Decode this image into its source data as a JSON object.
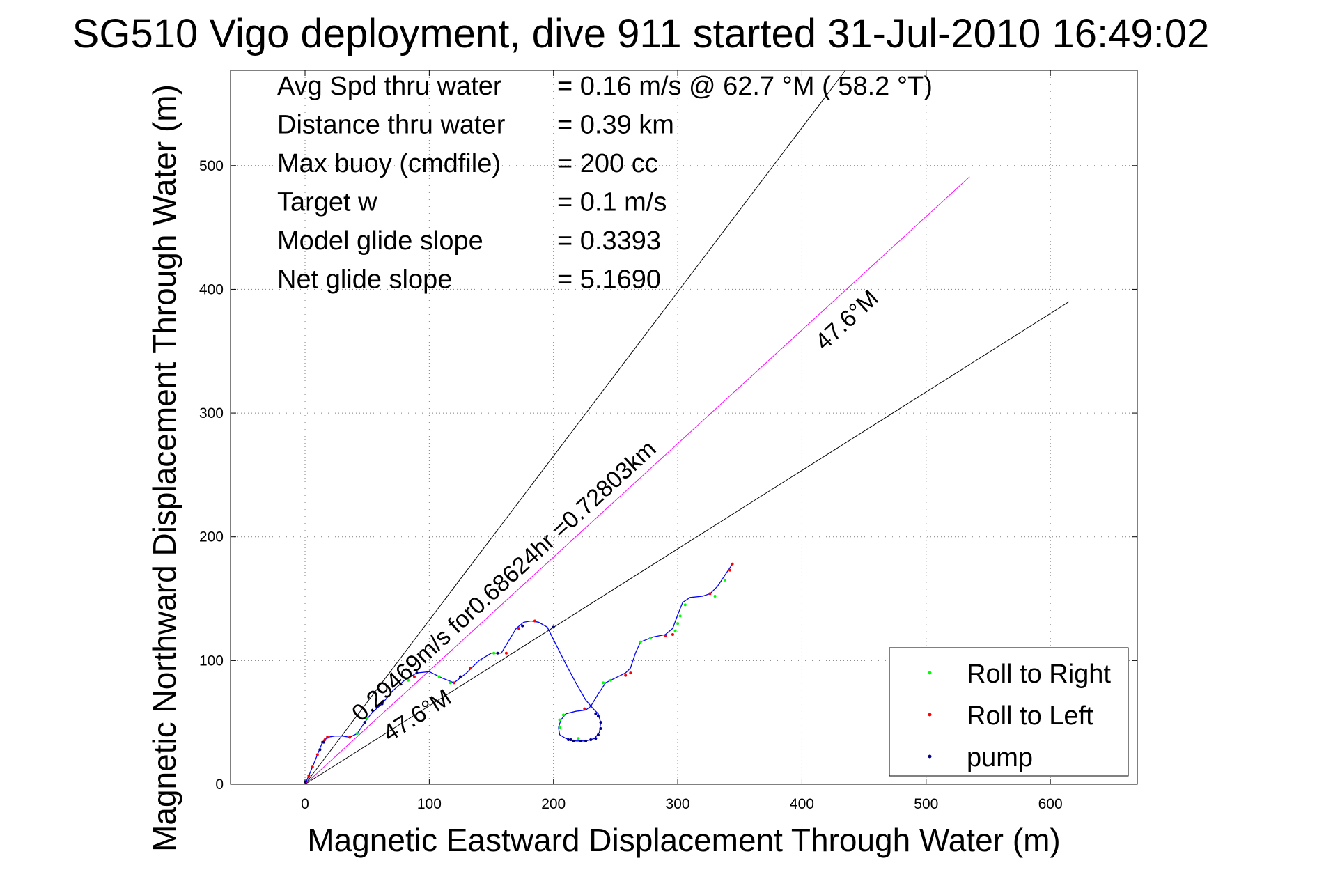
{
  "chart_data": {
    "type": "line",
    "title": "SG510 Vigo deployment, dive 911 started 31-Jul-2010 16:49:02",
    "xlabel": "Magnetic Eastward Displacement Through Water (m)",
    "ylabel": "Magnetic Northward Displacement Through Water (m)",
    "xlim": [
      -60,
      670
    ],
    "ylim": [
      0,
      577
    ],
    "x_ticks": [
      0,
      100,
      200,
      300,
      400,
      500,
      600
    ],
    "y_ticks": [
      0,
      100,
      200,
      300,
      400,
      500
    ],
    "x_tick_labels": [
      "0",
      "100",
      "200",
      "300",
      "400",
      "500",
      "600"
    ],
    "y_tick_labels": [
      "0",
      "100",
      "200",
      "300",
      "400",
      "500"
    ],
    "grid": true,
    "stats": [
      {
        "label": "Avg Spd thru water",
        "value": "=  0.16 m/s @  62.7 °M ( 58.2 °T)"
      },
      {
        "label": "Distance thru water",
        "value": "=  0.39 km"
      },
      {
        "label": "Max buoy (cmdfile)",
        "value": "= 200 cc"
      },
      {
        "label": "Target w",
        "value": "= 0.1 m/s"
      },
      {
        "label": "Model glide slope",
        "value": "= 0.3393"
      },
      {
        "label": "Net glide slope",
        "value": "= 5.1690"
      }
    ],
    "reference_lines": [
      {
        "color": "#000000",
        "x": [
          0,
          435
        ],
        "y": [
          0,
          577
        ]
      },
      {
        "color": "#ff00ff",
        "x": [
          0,
          535
        ],
        "y": [
          0,
          491
        ]
      },
      {
        "color": "#000000",
        "x": [
          0,
          615
        ],
        "y": [
          0,
          390
        ]
      }
    ],
    "annotations": [
      {
        "text": "0.29469m/s for0.68624hr =0.72803km",
        "x": 45,
        "y": 50,
        "angle_deg": 42.5
      },
      {
        "text": "47.6°M",
        "x": 418,
        "y": 350,
        "angle_deg": 42.5
      },
      {
        "text": "47.6°M",
        "x": 68,
        "y": 34,
        "angle_deg": 32.4
      }
    ],
    "series": [
      {
        "name": "track",
        "color": "#0000ff",
        "x": [
          0,
          3,
          6,
          10,
          14,
          18,
          24,
          30,
          36,
          42,
          48,
          54,
          62,
          70,
          80,
          90,
          100,
          110,
          120,
          130,
          140,
          150,
          158,
          164,
          170,
          176,
          182,
          188,
          195,
          202,
          210,
          218,
          226,
          232,
          236,
          238,
          237,
          233,
          226,
          218,
          210,
          205,
          204,
          206,
          210,
          218,
          226,
          230,
          236,
          242,
          250,
          258,
          262,
          266,
          270,
          280,
          290,
          296,
          300,
          304,
          310,
          320,
          326,
          332,
          338,
          344
        ],
        "y": [
          0,
          7,
          14,
          24,
          34,
          38,
          39,
          39,
          38,
          41,
          50,
          58,
          65,
          75,
          84,
          90,
          91,
          86,
          82,
          90,
          100,
          106,
          106,
          116,
          126,
          131,
          132,
          131,
          127,
          113,
          97,
          82,
          68,
          61,
          57,
          50,
          42,
          37,
          35,
          35,
          37,
          40,
          46,
          52,
          57,
          59,
          60,
          63,
          73,
          82,
          86,
          90,
          94,
          106,
          115,
          119,
          121,
          126,
          137,
          147,
          151,
          152,
          154,
          160,
          169,
          178
        ]
      }
    ],
    "markers": [
      {
        "name": "Roll to Right",
        "color": "#00ff00",
        "x": [
          42,
          50,
          83,
          108,
          117,
          152,
          205,
          205,
          208,
          220,
          240,
          246,
          270,
          278,
          298,
          300,
          302,
          306,
          330,
          338
        ],
        "y": [
          41,
          53,
          84,
          87,
          82,
          106,
          46,
          52,
          56,
          37,
          82,
          84,
          115,
          118,
          124,
          130,
          136,
          145,
          152,
          165
        ]
      },
      {
        "name": "Roll to Left",
        "color": "#ff0000",
        "x": [
          3,
          6,
          10,
          14,
          16,
          18,
          36,
          62,
          88,
          120,
          133,
          162,
          172,
          185,
          225,
          258,
          262,
          290,
          296,
          326,
          342,
          344
        ],
        "y": [
          7,
          14,
          24,
          34,
          36,
          38,
          38,
          65,
          87,
          82,
          94,
          106,
          126,
          132,
          61,
          88,
          90,
          120,
          121,
          154,
          173,
          178
        ]
      },
      {
        "name": "pump",
        "color": "#000080",
        "x": [
          0,
          12,
          15,
          48,
          62,
          90,
          125,
          155,
          175,
          200,
          212,
          216,
          222,
          226,
          230,
          234,
          236,
          238,
          236,
          234,
          214,
          238
        ],
        "y": [
          2,
          28,
          34,
          50,
          65,
          90,
          87,
          106,
          128,
          127,
          36,
          35,
          35,
          35,
          36,
          37,
          40,
          45,
          55,
          57,
          36,
          50
        ]
      }
    ],
    "legend": {
      "placement": "bottom-right",
      "entries": [
        {
          "label": "Roll to Right",
          "color": "#00ff00"
        },
        {
          "label": "Roll to Left",
          "color": "#ff0000"
        },
        {
          "label": "pump",
          "color": "#000080"
        }
      ]
    }
  }
}
